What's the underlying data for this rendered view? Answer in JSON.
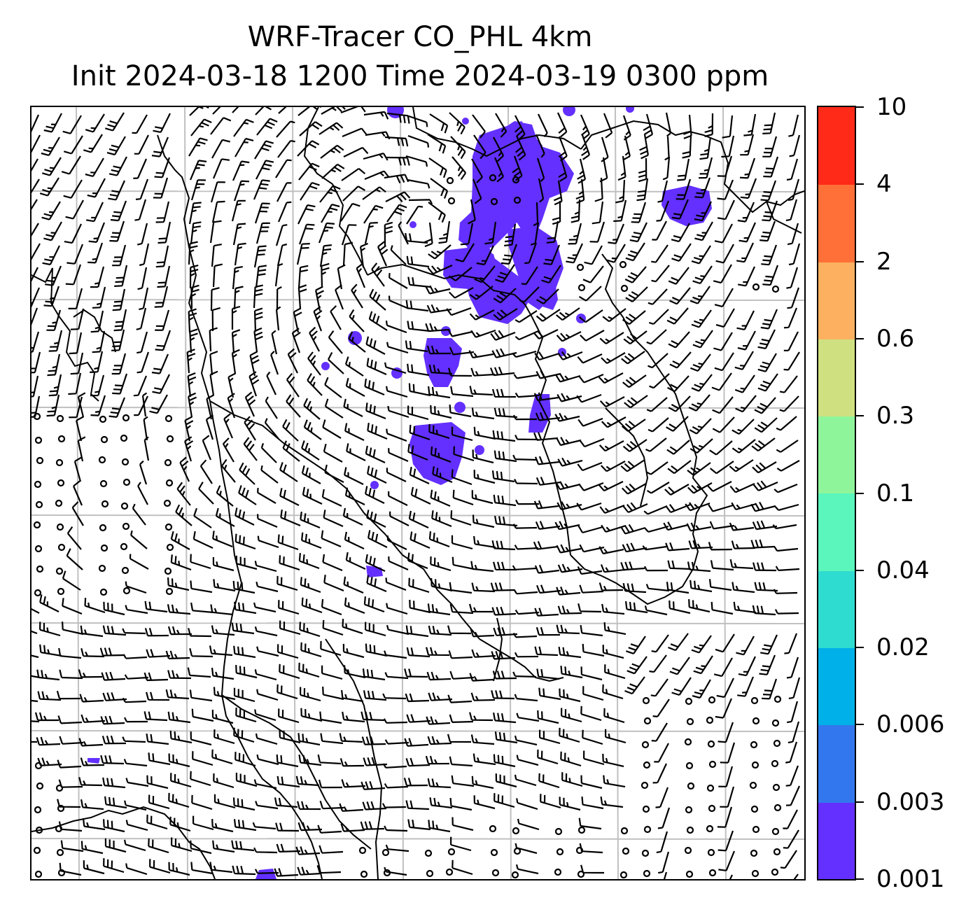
{
  "title_line1": "WRF-Tracer CO_PHL 4km",
  "title_line2": "Init 2024-03-18 1200 Time 2024-03-19 0300 ppm",
  "colorbar": {
    "levels": [
      "0.001",
      "0.003",
      "0.006",
      "0.02",
      "0.04",
      "0.1",
      "0.3",
      "0.6",
      "2",
      "4",
      "10"
    ],
    "colors": [
      "#6330ff",
      "#3377ee",
      "#00b0e8",
      "#2edcd0",
      "#5af6bb",
      "#8ff59a",
      "#cfe080",
      "#fcb060",
      "#ff7038",
      "#ff2a18"
    ]
  },
  "tracer_color": "#6330ff",
  "map": {
    "gridlines": true,
    "grid_color": "#c0c0c0",
    "overlay": "wind-barbs",
    "calm_symbol": "circle",
    "coastline_color": "#000000"
  }
}
